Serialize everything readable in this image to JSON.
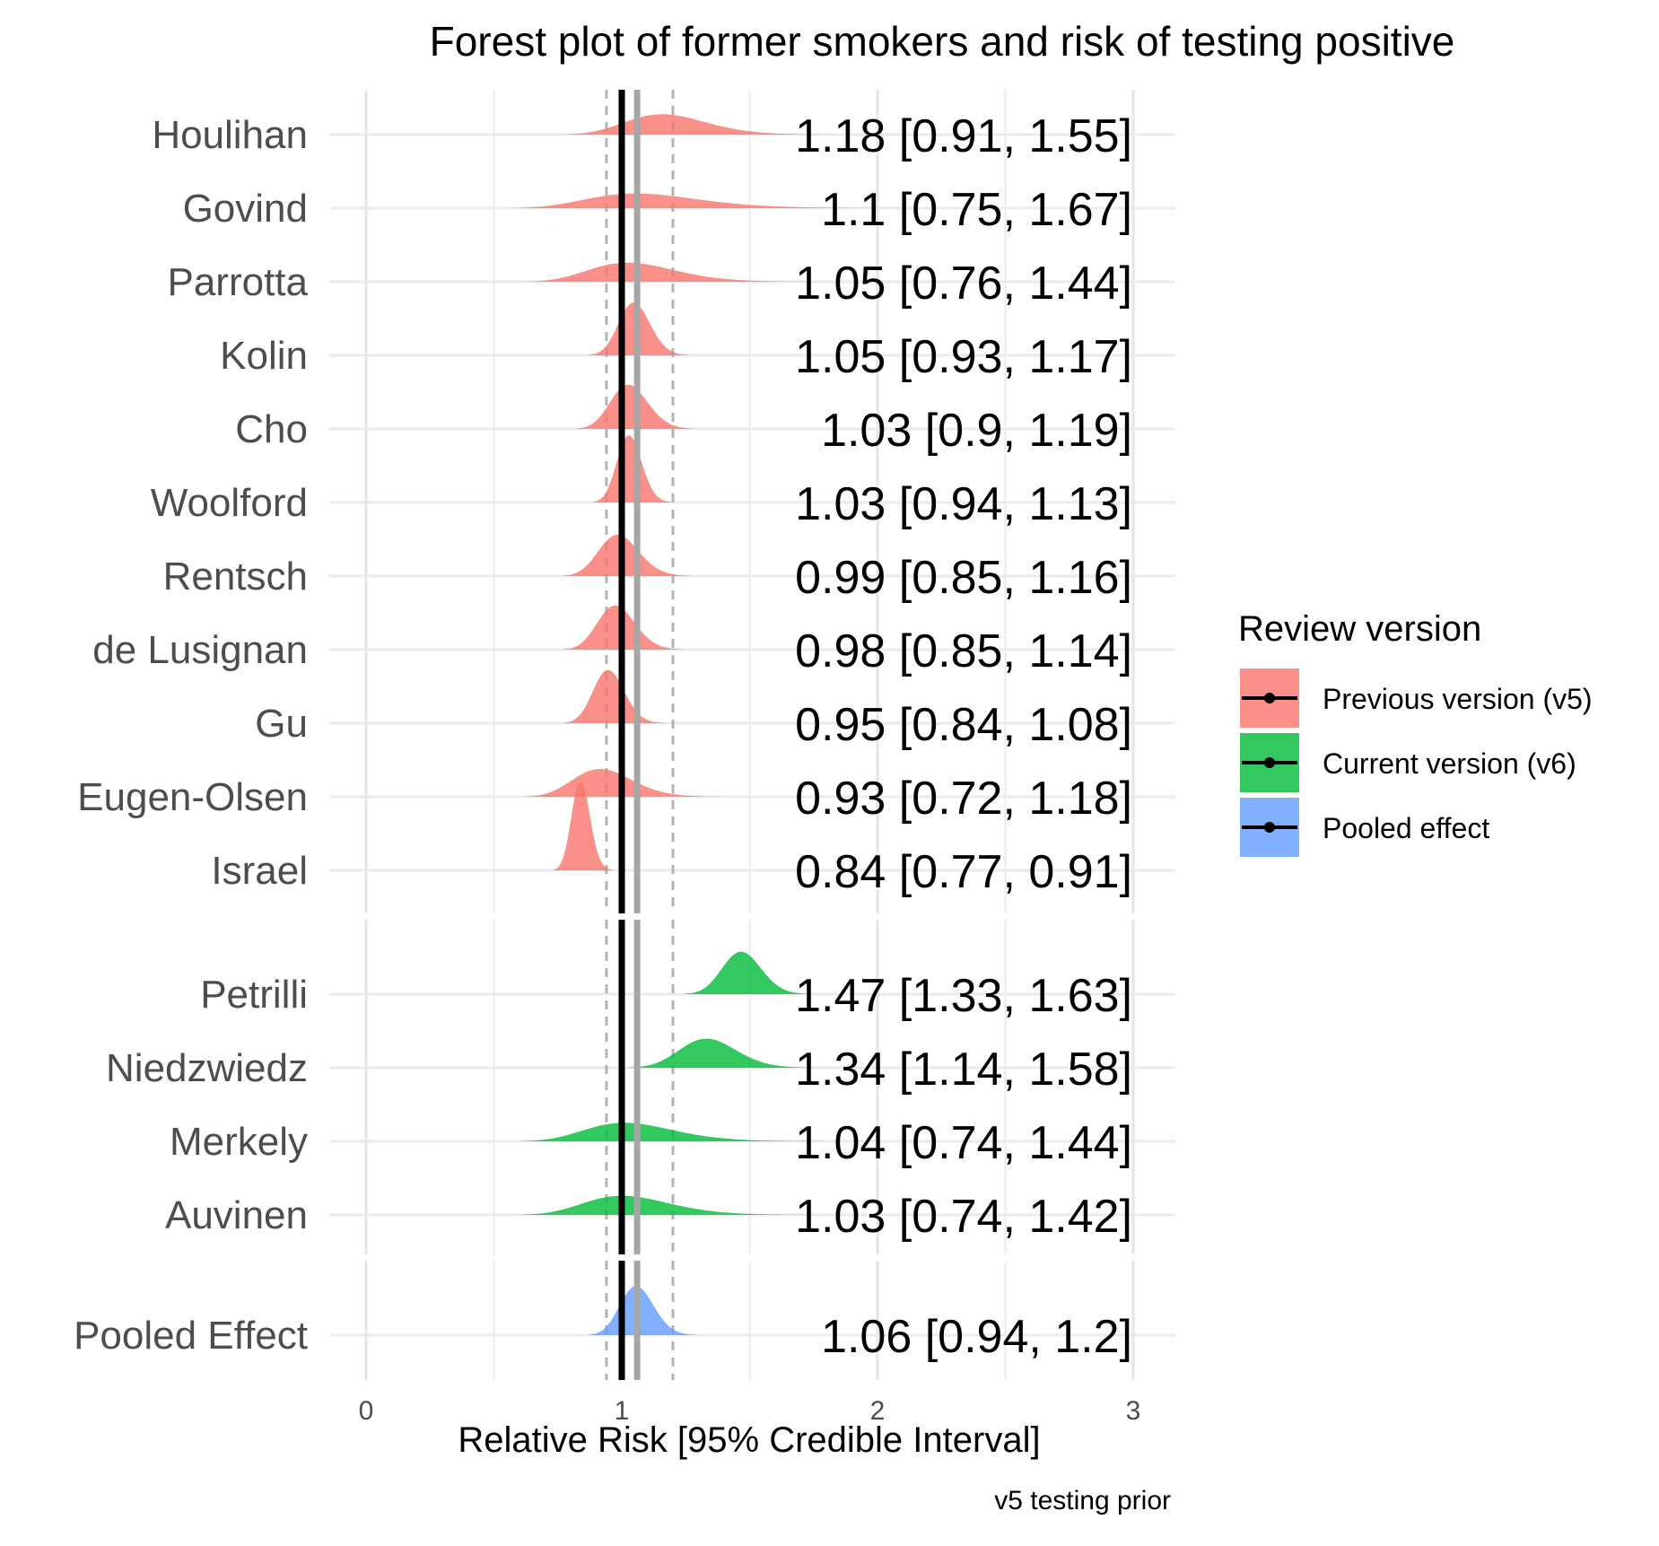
{
  "chart_data": {
    "type": "forest",
    "title": "Forest plot of former smokers and risk of testing positive",
    "xlabel": "Relative Risk [95% Credible Interval]",
    "caption": "v5 testing prior",
    "xlim": [
      -0.15,
      3.15
    ],
    "x_ticks": [
      "0",
      "1",
      "2",
      "3"
    ],
    "x_tick_values": [
      0,
      1,
      2,
      3
    ],
    "grid": true,
    "reference_lines": {
      "null_line": 1,
      "pooled_estimate": 1.06,
      "pooled_ci": [
        0.94,
        1.2
      ]
    },
    "legend": {
      "title": "Review version",
      "position": "right",
      "entries": [
        {
          "label": "Previous version (v5)",
          "color": "#F8766D"
        },
        {
          "label": "Current version (v6)",
          "color": "#00BA38"
        },
        {
          "label": "Pooled effect",
          "color": "#619CFF"
        }
      ]
    },
    "groups": [
      {
        "version": "Previous version (v5)",
        "color": "#F8766D",
        "studies": [
          {
            "name": "Houlihan",
            "estimate": 1.18,
            "lower": 0.91,
            "upper": 1.55,
            "label": "1.18 [0.91, 1.55]"
          },
          {
            "name": "Govind",
            "estimate": 1.1,
            "lower": 0.75,
            "upper": 1.67,
            "label": "1.1 [0.75, 1.67]"
          },
          {
            "name": "Parrotta",
            "estimate": 1.05,
            "lower": 0.76,
            "upper": 1.44,
            "label": "1.05 [0.76, 1.44]"
          },
          {
            "name": "Kolin",
            "estimate": 1.05,
            "lower": 0.93,
            "upper": 1.17,
            "label": "1.05 [0.93, 1.17]"
          },
          {
            "name": "Cho",
            "estimate": 1.03,
            "lower": 0.9,
            "upper": 1.19,
            "label": "1.03 [0.9, 1.19]"
          },
          {
            "name": "Woolford",
            "estimate": 1.03,
            "lower": 0.94,
            "upper": 1.13,
            "label": "1.03 [0.94, 1.13]"
          },
          {
            "name": "Rentsch",
            "estimate": 0.99,
            "lower": 0.85,
            "upper": 1.16,
            "label": "0.99 [0.85, 1.16]"
          },
          {
            "name": "de Lusignan",
            "estimate": 0.98,
            "lower": 0.85,
            "upper": 1.14,
            "label": "0.98 [0.85, 1.14]"
          },
          {
            "name": "Gu",
            "estimate": 0.95,
            "lower": 0.84,
            "upper": 1.08,
            "label": "0.95 [0.84, 1.08]"
          },
          {
            "name": "Eugen-Olsen",
            "estimate": 0.93,
            "lower": 0.72,
            "upper": 1.18,
            "label": "0.93 [0.72, 1.18]"
          },
          {
            "name": "Israel",
            "estimate": 0.84,
            "lower": 0.77,
            "upper": 0.91,
            "label": "0.84 [0.77, 0.91]"
          }
        ]
      },
      {
        "version": "Current version (v6)",
        "color": "#00BA38",
        "studies": [
          {
            "name": "Petrilli",
            "estimate": 1.47,
            "lower": 1.33,
            "upper": 1.63,
            "label": "1.47 [1.33, 1.63]"
          },
          {
            "name": "Niedzwiedz",
            "estimate": 1.34,
            "lower": 1.14,
            "upper": 1.58,
            "label": "1.34 [1.14, 1.58]"
          },
          {
            "name": "Merkely",
            "estimate": 1.04,
            "lower": 0.74,
            "upper": 1.44,
            "label": "1.04 [0.74, 1.44]"
          },
          {
            "name": "Auvinen",
            "estimate": 1.03,
            "lower": 0.74,
            "upper": 1.42,
            "label": "1.03 [0.74, 1.42]"
          }
        ]
      },
      {
        "version": "Pooled effect",
        "color": "#619CFF",
        "studies": [
          {
            "name": "Pooled Effect",
            "estimate": 1.06,
            "lower": 0.94,
            "upper": 1.2,
            "label": "1.06 [0.94, 1.2]"
          }
        ]
      }
    ]
  }
}
